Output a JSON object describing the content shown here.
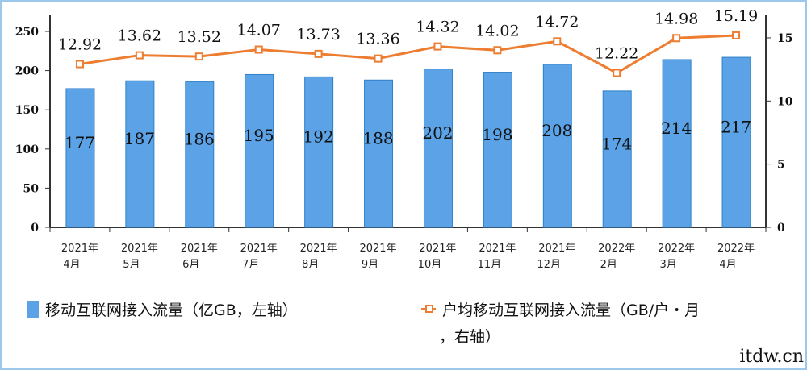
{
  "chart_data": {
    "type": "bar+line",
    "categories": [
      "2021年\n4月",
      "2021年\n5月",
      "2021年\n6月",
      "2021年\n7月",
      "2021年\n8月",
      "2021年\n9月",
      "2021年\n10月",
      "2021年\n11月",
      "2021年\n12月",
      "2022年\n2月",
      "2022年\n3月",
      "2022年\n4月"
    ],
    "series": [
      {
        "name": "移动互联网接入流量（亿GB，左轴）",
        "type": "bar",
        "axis": "left",
        "color": "#5ba3e6",
        "values": [
          177,
          187,
          186,
          195,
          192,
          188,
          202,
          198,
          208,
          174,
          214,
          217
        ]
      },
      {
        "name": "户均移动互联网接入流量（GB/户・月，右轴）",
        "type": "line",
        "axis": "right",
        "color": "#ed7d31",
        "values": [
          12.92,
          13.62,
          13.52,
          14.07,
          13.73,
          13.36,
          14.32,
          14.02,
          14.72,
          12.22,
          14.98,
          15.19
        ]
      }
    ],
    "left_axis": {
      "ticks": [
        0,
        50,
        100,
        150,
        200,
        250
      ]
    },
    "right_axis": {
      "ticks": [
        0,
        5,
        10,
        15
      ]
    },
    "legend_placement": "bottom",
    "grid": false
  },
  "legend": {
    "bar_label": "移动互联网接入流量（亿GB，左轴）",
    "line_label_1": "户均移动互联网接入流量（GB/户・月",
    "line_label_2": "，右轴）"
  },
  "watermark": "itdw.cn"
}
